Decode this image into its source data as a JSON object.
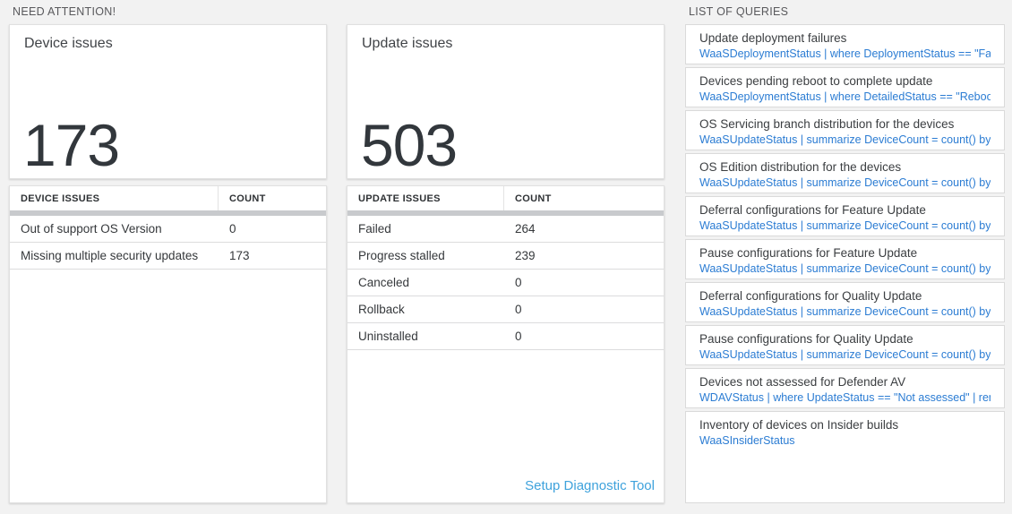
{
  "need_attention": {
    "header": "NEED ATTENTION!",
    "device_card": {
      "title": "Device issues",
      "count": "173"
    },
    "device_table": {
      "col1_header": "DEVICE ISSUES",
      "col2_header": "COUNT",
      "rows": [
        {
          "label": "Out of support OS Version",
          "count": "0"
        },
        {
          "label": "Missing multiple security updates",
          "count": "173"
        }
      ]
    },
    "update_card": {
      "title": "Update issues",
      "count": "503"
    },
    "update_table": {
      "col1_header": "UPDATE ISSUES",
      "col2_header": "COUNT",
      "rows": [
        {
          "label": "Failed",
          "count": "264"
        },
        {
          "label": "Progress stalled",
          "count": "239"
        },
        {
          "label": "Canceled",
          "count": "0"
        },
        {
          "label": "Rollback",
          "count": "0"
        },
        {
          "label": "Uninstalled",
          "count": "0"
        }
      ],
      "link_label": "Setup Diagnostic Tool"
    }
  },
  "queries_panel": {
    "header": "LIST OF QUERIES",
    "items": [
      {
        "title": "Update deployment failures",
        "query": "WaaSDeploymentStatus | where DeploymentStatus == \"Failed\" |..."
      },
      {
        "title": "Devices pending reboot to complete update",
        "query": "WaaSDeploymentStatus | where DetailedStatus == \"Reboot pend..."
      },
      {
        "title": "OS Servicing branch distribution for the devices",
        "query": "WaaSUpdateStatus | summarize DeviceCount = count() by OSSer..."
      },
      {
        "title": "OS Edition distribution for the devices",
        "query": "WaaSUpdateStatus | summarize DeviceCount = count() by OSEdit..."
      },
      {
        "title": "Deferral configurations for Feature Update",
        "query": "WaaSUpdateStatus | summarize DeviceCount = count() by Featur..."
      },
      {
        "title": "Pause configurations for Feature Update",
        "query": "WaaSUpdateStatus | summarize DeviceCount = count() by Featur..."
      },
      {
        "title": "Deferral configurations for Quality Update",
        "query": "WaaSUpdateStatus | summarize DeviceCount = count() by Qualit..."
      },
      {
        "title": "Pause configurations for Quality Update",
        "query": "WaaSUpdateStatus | summarize DeviceCount = count() by Qualit..."
      },
      {
        "title": "Devices not assessed for Defender AV",
        "query": "WDAVStatus | where UpdateStatus == \"Not assessed\" | render ta..."
      },
      {
        "title": "Inventory of devices on Insider builds",
        "query": "WaaSInsiderStatus"
      }
    ]
  },
  "colors": {
    "page_bg": "#f2f2f2",
    "card_bg": "#ffffff",
    "band": "#c8cacd",
    "query_link_blue": "#2b7cd3",
    "diag_link_blue": "#3ea2dc",
    "big_number": "#32373c"
  }
}
